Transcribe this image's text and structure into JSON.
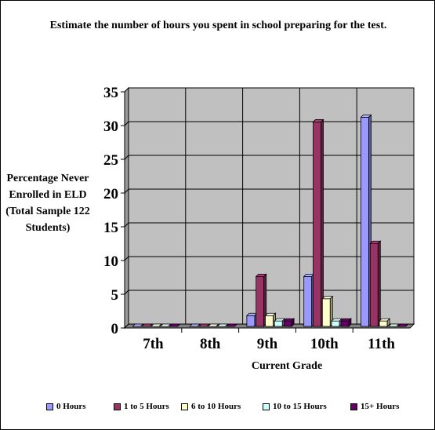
{
  "chart_data": {
    "type": "bar",
    "title": "Estimate the number of hours you spent in school preparing for the test.",
    "xlabel": "Current Grade",
    "ylabel": "Percentage Never Enrolled in ELD (Total Sample 122 Students)",
    "categories": [
      "7th",
      "8th",
      "9th",
      "10th",
      "11th"
    ],
    "ylim": [
      0,
      35
    ],
    "yticks": [
      "0",
      "5",
      "10",
      "15",
      "20",
      "25",
      "30",
      "35"
    ],
    "grid": true,
    "legend_position": "bottom",
    "series": [
      {
        "name": "0 Hours",
        "color": "#9999ff",
        "values": [
          0,
          0,
          1.6,
          7.4,
          31
        ]
      },
      {
        "name": "1 to 5 Hours",
        "color": "#993366",
        "values": [
          0,
          0,
          7.4,
          30.3,
          12.3
        ]
      },
      {
        "name": "6 to 10 Hours",
        "color": "#ffffcc",
        "values": [
          0,
          0,
          1.6,
          4.1,
          0.8
        ]
      },
      {
        "name": "10 to 15 Hours",
        "color": "#ccffff",
        "values": [
          0,
          0,
          0.8,
          0.8,
          0
        ]
      },
      {
        "name": "15+ Hours",
        "color": "#660066",
        "values": [
          0,
          0,
          0.8,
          0.8,
          0
        ]
      }
    ]
  },
  "colors": {
    "plot_area": "#c0c0c0",
    "gridline": "#000000"
  }
}
